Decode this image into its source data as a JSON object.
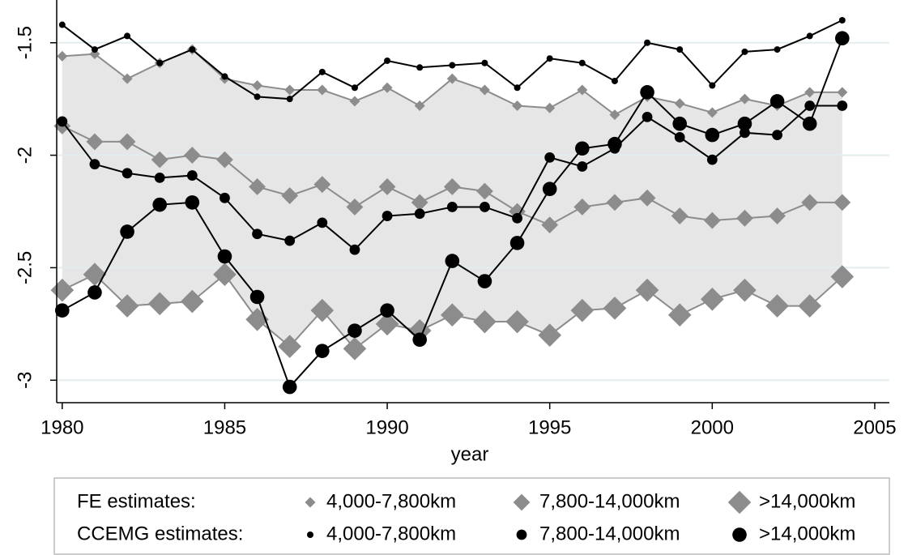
{
  "chart_data": {
    "type": "line",
    "x_label": "year",
    "x": [
      1980,
      1981,
      1982,
      1983,
      1984,
      1985,
      1986,
      1987,
      1988,
      1989,
      1990,
      1991,
      1992,
      1993,
      1994,
      1995,
      1996,
      1997,
      1998,
      1999,
      2000,
      2001,
      2002,
      2003,
      2004
    ],
    "series": [
      {
        "name": "4,000-7,800km",
        "color": "#8c8c8c",
        "marker": "diamond",
        "marker_size": "small",
        "values": [
          -1.56,
          -1.55,
          -1.66,
          -1.59,
          -1.53,
          -1.66,
          -1.69,
          -1.71,
          -1.71,
          -1.76,
          -1.7,
          -1.78,
          -1.66,
          -1.71,
          -1.78,
          -1.79,
          -1.71,
          -1.82,
          -1.74,
          -1.77,
          -1.81,
          -1.75,
          -1.78,
          -1.72,
          -1.72
        ]
      },
      {
        "name": "7,800-14,000km",
        "color": "#8c8c8c",
        "marker": "diamond",
        "marker_size": "medium",
        "values": [
          -1.87,
          -1.94,
          -1.94,
          -2.02,
          -2.0,
          -2.02,
          -2.14,
          -2.18,
          -2.13,
          -2.23,
          -2.14,
          -2.21,
          -2.14,
          -2.16,
          -2.25,
          -2.31,
          -2.23,
          -2.21,
          -2.19,
          -2.27,
          -2.29,
          -2.28,
          -2.27,
          -2.21,
          -2.21
        ]
      },
      {
        "name": ">14,000km",
        "color": "#8c8c8c",
        "marker": "diamond",
        "marker_size": "large",
        "values": [
          -2.6,
          -2.53,
          -2.67,
          -2.66,
          -2.65,
          -2.53,
          -2.73,
          -2.85,
          -2.69,
          -2.86,
          -2.75,
          -2.78,
          -2.71,
          -2.74,
          -2.74,
          -2.8,
          -2.69,
          -2.68,
          -2.6,
          -2.71,
          -2.64,
          -2.6,
          -2.67,
          -2.67,
          -2.54
        ]
      },
      {
        "name": "4,000-7,800km",
        "color": "#000000",
        "marker": "circle",
        "marker_size": "small",
        "values": [
          -1.42,
          -1.53,
          -1.47,
          -1.59,
          -1.53,
          -1.65,
          -1.74,
          -1.75,
          -1.63,
          -1.7,
          -1.58,
          -1.61,
          -1.6,
          -1.59,
          -1.7,
          -1.57,
          -1.59,
          -1.67,
          -1.5,
          -1.53,
          -1.69,
          -1.54,
          -1.53,
          -1.47,
          -1.4
        ]
      },
      {
        "name": "7,800-14,000km",
        "color": "#000000",
        "marker": "circle",
        "marker_size": "medium",
        "values": [
          -1.85,
          -2.04,
          -2.08,
          -2.1,
          -2.09,
          -2.19,
          -2.35,
          -2.38,
          -2.3,
          -2.42,
          -2.27,
          -2.26,
          -2.23,
          -2.23,
          -2.28,
          -2.01,
          -2.05,
          -1.97,
          -1.83,
          -1.92,
          -2.02,
          -1.9,
          -1.91,
          -1.78,
          -1.78
        ]
      },
      {
        "name": ">14,000km",
        "color": "#000000",
        "marker": "circle",
        "marker_size": "large",
        "values": [
          -2.69,
          -2.61,
          -2.34,
          -2.22,
          -2.21,
          -2.45,
          -2.63,
          -3.03,
          -2.87,
          -2.78,
          -2.69,
          -2.82,
          -2.47,
          -2.56,
          -2.39,
          -2.15,
          -1.97,
          -1.95,
          -1.72,
          -1.86,
          -1.91,
          -1.86,
          -1.76,
          -1.86,
          -1.48
        ]
      }
    ],
    "legend_rows": [
      "FE estimates:",
      "CCEMG estimates:"
    ],
    "xlim": [
      1979.83,
      2005.45
    ],
    "xticks": [
      1980,
      1985,
      1990,
      1995,
      2000,
      2005
    ],
    "ylim": [
      -3.1,
      -1.31
    ],
    "yticks": [
      -3,
      -2.5,
      -2,
      -1.5
    ],
    "grid": true,
    "shade_band": true
  }
}
